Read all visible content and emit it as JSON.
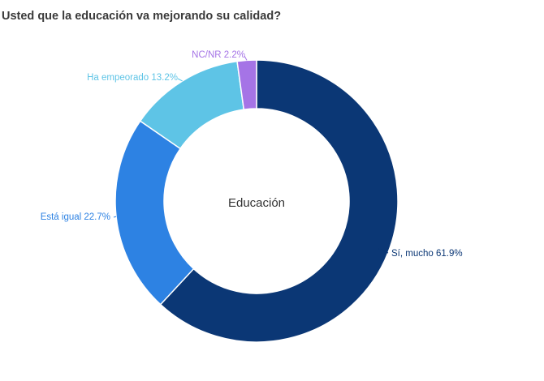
{
  "chart_data": {
    "type": "pie",
    "title": "Usted que la educación va mejorando su calidad?",
    "center_label": "Educación",
    "slices": [
      {
        "label": "Sí, mucho",
        "value": 61.9,
        "label_text": "Sí, mucho 61.9%",
        "color": "#0b3775"
      },
      {
        "label": "Está igual",
        "value": 22.7,
        "label_text": "Está igual 22.7%",
        "color": "#2d82e3"
      },
      {
        "label": "Ha empeorado",
        "value": 13.2,
        "label_text": "Ha empeorado 13.2%",
        "color": "#5ec4e6"
      },
      {
        "label": "NC/NR",
        "value": 2.2,
        "label_text": "NC/NR 2.2%",
        "color": "#a574e6"
      }
    ]
  }
}
